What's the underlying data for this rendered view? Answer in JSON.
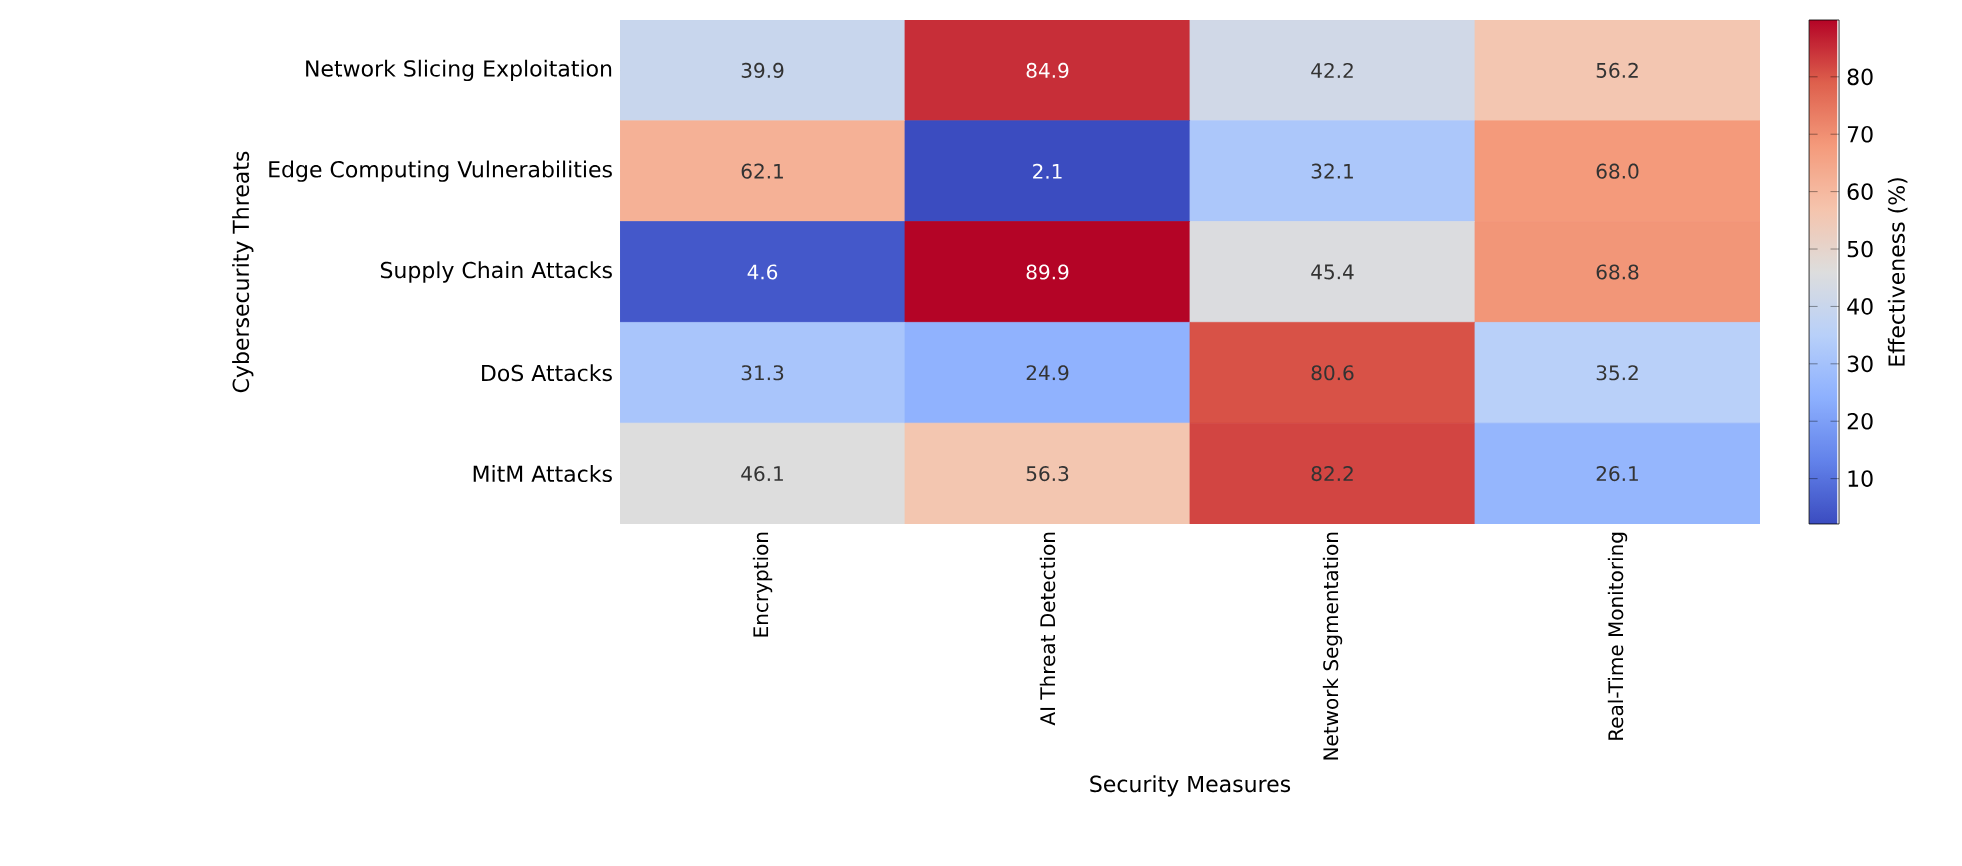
{
  "chart_data": {
    "type": "heatmap",
    "xlabel": "Security Measures",
    "ylabel": "Cybersecurity Threats",
    "clabel": "Effectiveness (%)",
    "categories": [
      "Encryption",
      "AI Threat Detection",
      "Network Segmentation",
      "Real-Time Monitoring"
    ],
    "y_categories": [
      "Network Slicing Exploitation",
      "Edge Computing Vulnerabilities",
      "Supply Chain Attacks",
      "DoS Attacks",
      "MitM Attacks"
    ],
    "cells": [
      [
        39.9,
        84.9,
        42.2,
        56.2
      ],
      [
        62.1,
        2.1,
        32.1,
        68.0
      ],
      [
        4.6,
        89.9,
        45.4,
        68.8
      ],
      [
        31.3,
        24.9,
        80.6,
        35.2
      ],
      [
        46.1,
        56.3,
        82.2,
        26.1
      ]
    ],
    "data_labels": true,
    "cell_labels": [
      [
        "39.9",
        "84.9",
        "42.2",
        "56.2"
      ],
      [
        "62.1",
        "2.1",
        "32.1",
        "68.0"
      ],
      [
        "4.6",
        "89.9",
        "45.4",
        "68.8"
      ],
      [
        "31.3",
        "24.9",
        "80.6",
        "35.2"
      ],
      [
        "46.1",
        "56.3",
        "82.2",
        "26.1"
      ]
    ],
    "clim": [
      2.1,
      89.9
    ],
    "cticks": [
      10,
      20,
      30,
      40,
      50,
      60,
      70,
      80
    ]
  }
}
